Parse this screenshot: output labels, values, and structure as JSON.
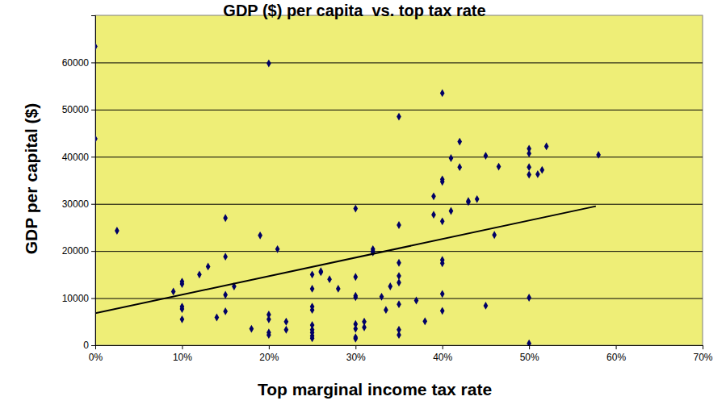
{
  "chart_data": {
    "type": "scatter",
    "title": "GDP ($) per capita  vs. top tax rate",
    "x_label": "Top marginal income tax rate",
    "y_label": "GDP per capital ($)",
    "xlim": [
      0,
      70
    ],
    "xticks": [
      {
        "value": 0,
        "label": "0%"
      },
      {
        "value": 10,
        "label": "10%"
      },
      {
        "value": 20,
        "label": "20%"
      },
      {
        "value": 30,
        "label": "30%"
      },
      {
        "value": 40,
        "label": "40%"
      },
      {
        "value": 50,
        "label": "50%"
      },
      {
        "value": 60,
        "label": "60%"
      },
      {
        "value": 70,
        "label": "70%"
      }
    ],
    "ylim": [
      0,
      70000
    ],
    "yticks": [
      0,
      10000,
      20000,
      30000,
      40000,
      50000,
      60000
    ],
    "grid": true,
    "series": [
      {
        "type": "scatter",
        "color": "#000066",
        "marker": "diamond",
        "x": [
          0,
          0,
          2.5,
          9,
          10,
          10,
          10,
          10,
          10,
          12,
          13,
          14,
          15,
          15,
          15,
          15,
          16,
          18,
          19,
          20,
          20,
          20,
          20,
          20,
          21,
          22,
          22,
          25,
          25,
          25,
          25,
          25,
          25,
          25,
          25,
          25,
          26,
          26,
          27,
          28,
          30,
          30,
          30,
          30,
          30,
          30,
          30,
          30,
          31,
          31,
          32,
          32,
          32,
          33,
          33.5,
          34,
          35,
          35,
          35,
          35,
          35,
          35,
          35,
          35,
          37,
          38,
          39,
          39,
          40,
          40,
          40,
          40,
          40,
          40,
          40,
          40,
          41,
          41,
          42,
          42,
          43,
          43,
          44,
          45,
          45,
          46,
          46.5,
          50,
          50,
          50,
          50,
          50,
          50,
          51,
          51.5,
          52,
          58
        ],
        "values": [
          63400,
          43800,
          24300,
          11400,
          13500,
          13000,
          8200,
          7700,
          5500,
          15000,
          16700,
          5900,
          27000,
          18800,
          10700,
          7200,
          12500,
          3500,
          23300,
          59800,
          6500,
          5500,
          2700,
          2200,
          20400,
          5000,
          3300,
          15000,
          12000,
          8200,
          7500,
          4300,
          3300,
          2700,
          2000,
          1500,
          15700,
          15500,
          14000,
          12000,
          29000,
          14500,
          10500,
          10200,
          4500,
          3500,
          1700,
          1400,
          5000,
          3800,
          20400,
          19700,
          20000,
          10300,
          7500,
          12500,
          48500,
          25500,
          17500,
          14700,
          13300,
          8700,
          3300,
          2200,
          9500,
          5100,
          31600,
          27700,
          53500,
          35200,
          34700,
          26300,
          18100,
          17400,
          10900,
          7300,
          39700,
          28500,
          43200,
          37800,
          30600,
          30400,
          31000,
          40200,
          8400,
          23400,
          37900,
          41700,
          40700,
          37800,
          36200,
          10100,
          400,
          36300,
          37200,
          42200,
          40400
        ]
      },
      {
        "type": "line",
        "color": "#000000",
        "line_style": "solid",
        "x": [
          0,
          57.7
        ],
        "values": [
          6800,
          29500
        ]
      }
    ]
  }
}
